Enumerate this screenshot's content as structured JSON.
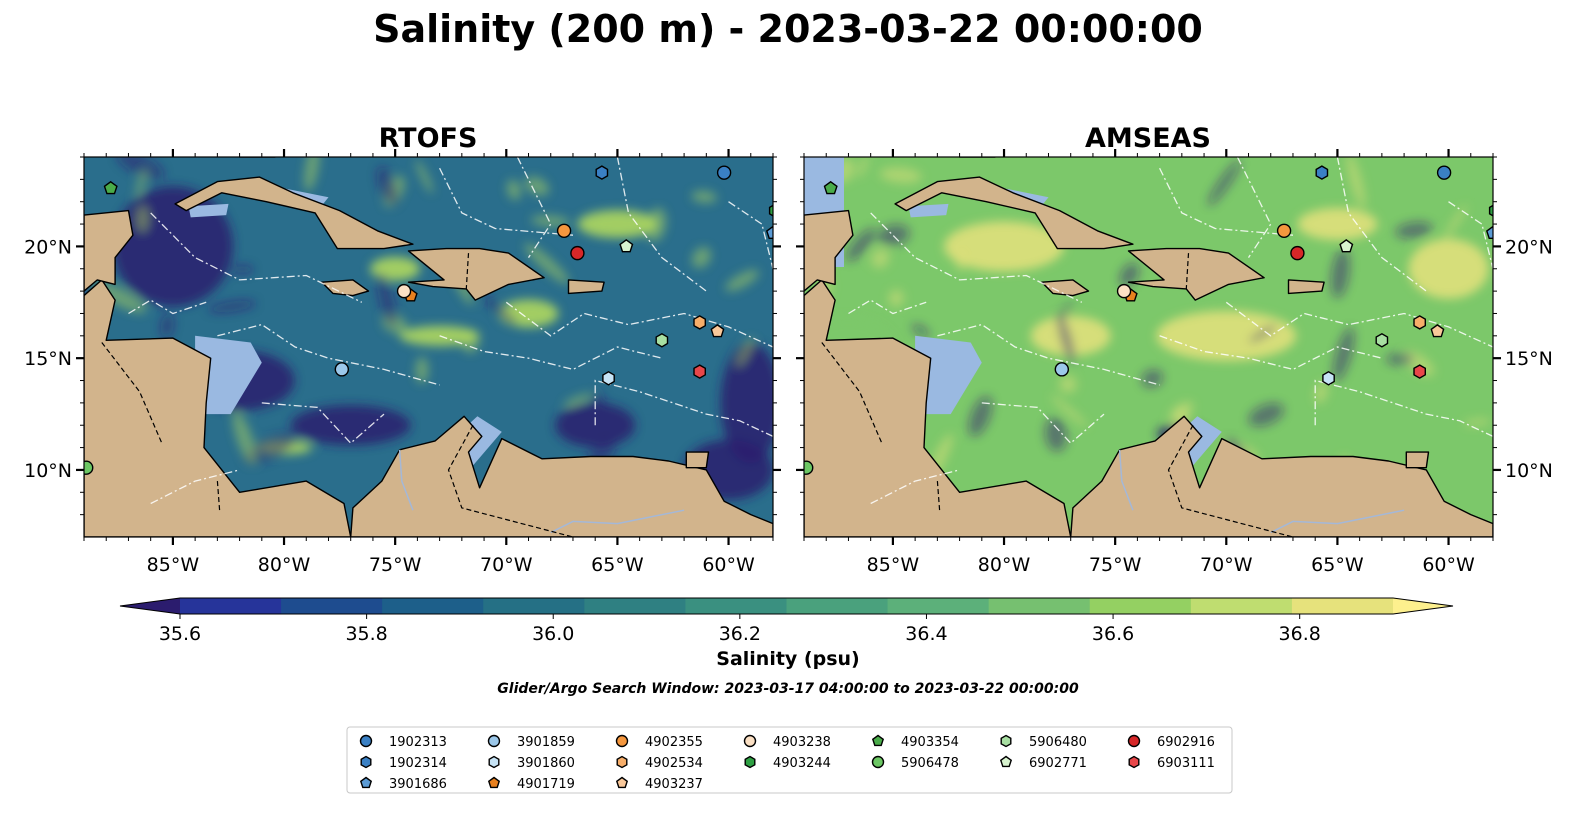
{
  "title": "Salinity (200 m) - 2023-03-22 00:00:00",
  "panels": [
    {
      "title": "RTOFS",
      "field_character": "fresher (mostly 35.6–36.2 psu, blue/indigo) with many eddies; saltier ribbons in NE Caribbean",
      "colors": {
        "ocean_base": "#2a6e8c",
        "fresh_core": "#2b1c6e",
        "salty_streak": "#b7de5c"
      }
    },
    {
      "title": "AMSEAS",
      "field_character": "saltier (mostly 36.4–36.9 psu, green/yellow); fresh pocket in Gulf of Venezuela",
      "colors": {
        "ocean_base": "#7cc86a",
        "fresh_core": "#2b1c6e",
        "salty_streak": "#e6e27c"
      }
    }
  ],
  "colors": {
    "land": "#d2b48c",
    "shallow_shelf": "#9ab9e1",
    "rivers": "#a4b8d8",
    "eez_lines": "#ffffff",
    "coast": "#000000"
  },
  "map_axes": {
    "lon_range": [
      -89,
      -58
    ],
    "lat_range": [
      7,
      24
    ],
    "x_ticks": [
      "85°W",
      "80°W",
      "75°W",
      "70°W",
      "65°W",
      "60°W"
    ],
    "y_ticks": [
      "10°N",
      "15°N",
      "20°N"
    ],
    "y_tick_values": [
      10,
      15,
      20
    ],
    "x_tick_values": [
      -85,
      -80,
      -75,
      -70,
      -65,
      -60
    ]
  },
  "colorbar": {
    "label": "Salinity (psu)",
    "min": 35.5,
    "max": 37.0,
    "step": 0.1,
    "ticks": [
      "35.6",
      "35.8",
      "36.0",
      "36.2",
      "36.4",
      "36.6",
      "36.8"
    ],
    "tick_values": [
      35.6,
      35.8,
      36.0,
      36.2,
      36.4,
      36.6,
      36.8
    ],
    "colors": [
      "#2b1c6e",
      "#26349a",
      "#1e4c8f",
      "#1d5f8a",
      "#257085",
      "#2f8082",
      "#3a9080",
      "#4aa17d",
      "#5cb07a",
      "#76c070",
      "#94d062",
      "#bfdd70",
      "#e6e27c",
      "#fdf08e"
    ],
    "extend": "both"
  },
  "subtitle": "Glider/Argo Search Window: 2023-03-17 04:00:00 to 2023-03-22 00:00:00",
  "legend": [
    [
      "1902313",
      "3901859",
      "4902355",
      "4903238",
      "4903354",
      "5906480",
      "6902916"
    ],
    [
      "1902314",
      "3901860",
      "4902534",
      "4903244",
      "5906478",
      "6902771",
      "6903111"
    ],
    [
      "3901686",
      "4901719",
      "4903237"
    ]
  ],
  "floats": [
    {
      "id": "1902313",
      "lon": -60.2,
      "lat": 23.3,
      "shape": "circle",
      "color": "#3a80c4"
    },
    {
      "id": "1902314",
      "lon": -65.7,
      "lat": 23.3,
      "shape": "hexagon",
      "color": "#3a80c4"
    },
    {
      "id": "3901686",
      "lon": -58.0,
      "lat": 20.6,
      "shape": "pentagon",
      "color": "#5b9bd5"
    },
    {
      "id": "3901859",
      "lon": -77.4,
      "lat": 14.5,
      "shape": "circle",
      "color": "#9cc8ea"
    },
    {
      "id": "3901860",
      "lon": -65.4,
      "lat": 14.1,
      "shape": "hexagon",
      "color": "#c6e3f5"
    },
    {
      "id": "4901719",
      "lon": -74.3,
      "lat": 17.8,
      "shape": "pentagon",
      "color": "#e8801e"
    },
    {
      "id": "4902355",
      "lon": -67.4,
      "lat": 20.7,
      "shape": "circle",
      "color": "#f5973e"
    },
    {
      "id": "4902534",
      "lon": -61.3,
      "lat": 16.6,
      "shape": "hexagon",
      "color": "#f7ae6a"
    },
    {
      "id": "4903237",
      "lon": -60.5,
      "lat": 16.2,
      "shape": "pentagon",
      "color": "#f9c89a"
    },
    {
      "id": "4903238",
      "lon": -74.6,
      "lat": 18.0,
      "shape": "circle",
      "color": "#fbe0c4"
    },
    {
      "id": "4903244",
      "lon": -57.9,
      "lat": 21.6,
      "shape": "hexagon",
      "color": "#2ea043"
    },
    {
      "id": "4903354",
      "lon": -87.8,
      "lat": 22.6,
      "shape": "pentagon",
      "color": "#4aac4a"
    },
    {
      "id": "5906478",
      "lon": -88.9,
      "lat": 10.1,
      "shape": "circle",
      "color": "#6cc764"
    },
    {
      "id": "5906480",
      "lon": -63.0,
      "lat": 15.8,
      "shape": "hexagon",
      "color": "#a8dfa2"
    },
    {
      "id": "6902771",
      "lon": -64.6,
      "lat": 20.0,
      "shape": "pentagon",
      "color": "#d8f3cf"
    },
    {
      "id": "6902916",
      "lon": -66.8,
      "lat": 19.7,
      "shape": "circle",
      "color": "#d62728"
    },
    {
      "id": "6903111",
      "lon": -61.3,
      "lat": 14.4,
      "shape": "hexagon",
      "color": "#e8474a"
    }
  ],
  "land_polygons": {
    "central_america": [
      [
        -89,
        17.8
      ],
      [
        -88.2,
        18.5
      ],
      [
        -87.6,
        17.6
      ],
      [
        -88.0,
        15.8
      ],
      [
        -85.0,
        15.9
      ],
      [
        -83.3,
        15.0
      ],
      [
        -83.5,
        13.0
      ],
      [
        -83.6,
        11.0
      ],
      [
        -82.0,
        9.0
      ],
      [
        -79.0,
        9.5
      ],
      [
        -77.3,
        8.5
      ],
      [
        -77.0,
        7.0
      ],
      [
        -89,
        7.0
      ]
    ],
    "yucatan": [
      [
        -89,
        21.4
      ],
      [
        -87.0,
        21.6
      ],
      [
        -86.8,
        20.5
      ],
      [
        -87.6,
        19.5
      ],
      [
        -87.6,
        18.3
      ],
      [
        -88.4,
        18.5
      ],
      [
        -89,
        18.0
      ]
    ],
    "south_america": [
      [
        -77.0,
        7.0
      ],
      [
        -76.9,
        8.3
      ],
      [
        -75.6,
        9.5
      ],
      [
        -74.8,
        10.9
      ],
      [
        -73.2,
        11.3
      ],
      [
        -71.9,
        12.4
      ],
      [
        -71.1,
        11.5
      ],
      [
        -71.7,
        10.8
      ],
      [
        -71.2,
        9.2
      ],
      [
        -70.2,
        11.4
      ],
      [
        -68.4,
        10.5
      ],
      [
        -66.2,
        10.6
      ],
      [
        -64.3,
        10.6
      ],
      [
        -62.7,
        10.4
      ],
      [
        -61.0,
        10.0
      ],
      [
        -60.2,
        8.6
      ],
      [
        -59.0,
        8.0
      ],
      [
        -58,
        7.6
      ],
      [
        -58,
        7.0
      ]
    ],
    "cuba": [
      [
        -84.9,
        21.9
      ],
      [
        -83.0,
        22.9
      ],
      [
        -81.1,
        23.1
      ],
      [
        -79.6,
        22.4
      ],
      [
        -77.5,
        21.6
      ],
      [
        -75.8,
        20.7
      ],
      [
        -74.2,
        20.1
      ],
      [
        -75.5,
        19.9
      ],
      [
        -77.6,
        19.9
      ],
      [
        -78.6,
        21.5
      ],
      [
        -80.8,
        22.0
      ],
      [
        -82.8,
        22.4
      ],
      [
        -84.4,
        21.6
      ]
    ],
    "hispaniola": [
      [
        -74.4,
        19.8
      ],
      [
        -72.7,
        19.9
      ],
      [
        -71.2,
        19.9
      ],
      [
        -69.9,
        19.7
      ],
      [
        -68.3,
        18.6
      ],
      [
        -69.9,
        18.3
      ],
      [
        -71.4,
        17.6
      ],
      [
        -71.8,
        18.1
      ],
      [
        -73.3,
        18.2
      ],
      [
        -74.4,
        18.4
      ],
      [
        -72.8,
        18.5
      ]
    ],
    "jamaica": [
      [
        -78.3,
        18.4
      ],
      [
        -76.9,
        18.5
      ],
      [
        -76.2,
        18.0
      ],
      [
        -76.9,
        17.8
      ],
      [
        -77.8,
        17.9
      ]
    ],
    "puerto_rico": [
      [
        -67.2,
        18.5
      ],
      [
        -65.6,
        18.4
      ],
      [
        -65.7,
        18.0
      ],
      [
        -67.2,
        17.9
      ]
    ],
    "trinidad": [
      [
        -61.9,
        10.8
      ],
      [
        -60.9,
        10.8
      ],
      [
        -61.0,
        10.1
      ],
      [
        -61.9,
        10.1
      ]
    ],
    "florida_tip": [
      [
        -82.0,
        24.0
      ],
      [
        -80.4,
        24.0
      ],
      [
        -80.8,
        24.5
      ],
      [
        -82.0,
        24.5
      ]
    ]
  }
}
